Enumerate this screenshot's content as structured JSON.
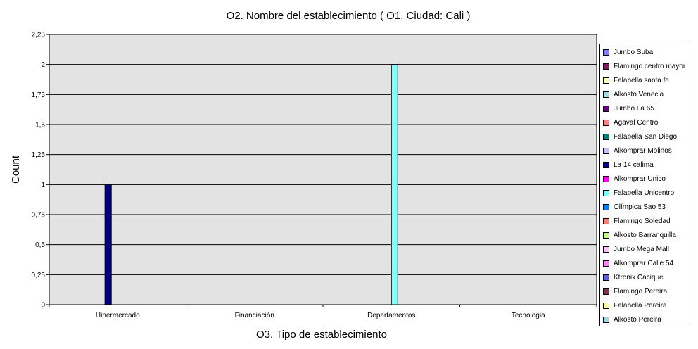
{
  "chart_data": {
    "type": "bar",
    "title": "O2. Nombre del establecimiento ( O1. Ciudad: Cali )",
    "xlabel": "O3. Tipo de establecimiento",
    "ylabel": "Count",
    "categories": [
      "Hipermercado",
      "Financiación",
      "Departamentos",
      "Tecnologia"
    ],
    "ylim": [
      0,
      2.25
    ],
    "y_ticks": [
      "0",
      "0,25",
      "0,5",
      "0,75",
      "1",
      "1,25",
      "1,5",
      "1,75",
      "2",
      "2,25"
    ],
    "y_tick_values": [
      0,
      0.25,
      0.5,
      0.75,
      1,
      1.25,
      1.5,
      1.75,
      2,
      2.25
    ],
    "grid": true,
    "legend_position": "right",
    "series": [
      {
        "name": "Jumbo Suba",
        "color": "#8080ff",
        "values": [
          0,
          0,
          0,
          0
        ]
      },
      {
        "name": "Flamingo centro mayor",
        "color": "#802060",
        "values": [
          0,
          0,
          0,
          0
        ]
      },
      {
        "name": "Falabella santa fe",
        "color": "#ffffc0",
        "values": [
          0,
          0,
          0,
          0
        ]
      },
      {
        "name": "Alkosto Venecia",
        "color": "#a0e0e0",
        "values": [
          0,
          0,
          0,
          0
        ]
      },
      {
        "name": "Jumbo La 65",
        "color": "#600080",
        "values": [
          0,
          0,
          0,
          0
        ]
      },
      {
        "name": "Agaval Centro",
        "color": "#ff8080",
        "values": [
          0,
          0,
          0,
          0
        ]
      },
      {
        "name": "Falabella San Diego",
        "color": "#008080",
        "values": [
          0,
          0,
          0,
          0
        ]
      },
      {
        "name": "Alkomprar Molinos",
        "color": "#c0c0ff",
        "values": [
          0,
          0,
          0,
          0
        ]
      },
      {
        "name": "La 14 calima",
        "color": "#000080",
        "values": [
          1,
          0,
          0,
          0
        ]
      },
      {
        "name": "Alkomprar Unico",
        "color": "#ff00ff",
        "values": [
          0,
          0,
          0,
          0
        ]
      },
      {
        "name": "Falabella Unicentro",
        "color": "#80ffff",
        "values": [
          0,
          0,
          2,
          0
        ]
      },
      {
        "name": "Olímpica Sao 53",
        "color": "#0080ff",
        "values": [
          0,
          0,
          0,
          0
        ]
      },
      {
        "name": "Flamingo Soledad",
        "color": "#ff8070",
        "values": [
          0,
          0,
          0,
          0
        ]
      },
      {
        "name": "Alkosto Barranquilla",
        "color": "#c0ff80",
        "values": [
          0,
          0,
          0,
          0
        ]
      },
      {
        "name": "Jumbo Mega Mall",
        "color": "#ffc0ff",
        "values": [
          0,
          0,
          0,
          0
        ]
      },
      {
        "name": "Alkomprar Calle 54",
        "color": "#ff80ff",
        "values": [
          0,
          0,
          0,
          0
        ]
      },
      {
        "name": "Ktronix Cacique",
        "color": "#6060e0",
        "values": [
          0,
          0,
          0,
          0
        ]
      },
      {
        "name": "Flamingo Pereira",
        "color": "#803050",
        "values": [
          0,
          0,
          0,
          0
        ]
      },
      {
        "name": "Falabella Pereira",
        "color": "#ffffa0",
        "values": [
          0,
          0,
          0,
          0
        ]
      },
      {
        "name": "Alkosto Pereira",
        "color": "#a0d8e0",
        "values": [
          0,
          0,
          0,
          0
        ]
      }
    ]
  },
  "colors": {
    "plot_background": "#e3e3e3",
    "gridline": "#000000"
  }
}
